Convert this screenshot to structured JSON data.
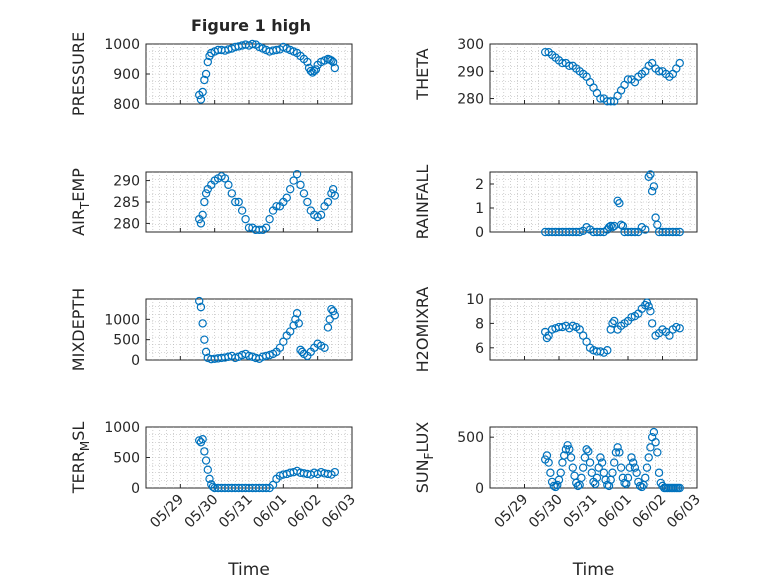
{
  "figure": {
    "title": "Figure 1 high"
  },
  "chart_data": [
    {
      "type": "scatter",
      "ylabel": "PRESSURE",
      "ylim": [
        800,
        1000
      ],
      "yticks": [
        "800",
        "900",
        "1000"
      ],
      "yticks_values": [
        800,
        900,
        1000
      ],
      "x_range": [
        0,
        4
      ],
      "x_tick_labels": [
        "05/29",
        "05/30",
        "05/31",
        "06/01",
        "06/02",
        "06/03"
      ],
      "x_tick_values": [
        0,
        1,
        2,
        3,
        4,
        5
      ],
      "x": [
        0.55,
        0.6,
        0.65,
        0.7,
        0.75,
        0.8,
        0.85,
        0.9,
        1.0,
        1.1,
        1.2,
        1.3,
        1.4,
        1.5,
        1.6,
        1.7,
        1.8,
        1.9,
        2.0,
        2.1,
        2.2,
        2.3,
        2.4,
        2.5,
        2.6,
        2.7,
        2.8,
        2.9,
        3.0,
        3.1,
        3.2,
        3.3,
        3.4,
        3.5,
        3.6,
        3.7,
        3.75,
        3.8,
        3.85,
        3.9,
        3.95,
        4.0,
        4.1,
        4.2,
        4.3,
        4.35,
        4.4,
        4.45,
        4.5
      ],
      "y": [
        830,
        815,
        840,
        880,
        900,
        940,
        960,
        970,
        975,
        980,
        980,
        978,
        982,
        985,
        990,
        992,
        995,
        998,
        995,
        1000,
        998,
        990,
        985,
        980,
        975,
        978,
        980,
        982,
        990,
        985,
        980,
        975,
        970,
        960,
        950,
        940,
        920,
        910,
        905,
        910,
        915,
        930,
        940,
        945,
        950,
        948,
        945,
        940,
        920
      ]
    },
    {
      "type": "scatter",
      "ylabel": "THETA",
      "ylim": [
        278,
        300
      ],
      "yticks": [
        "280",
        "290",
        "300"
      ],
      "yticks_values": [
        280,
        290,
        300
      ],
      "x_range": [
        0,
        4
      ],
      "x_tick_labels": [
        "05/29",
        "05/30",
        "05/31",
        "06/01",
        "06/02",
        "06/03"
      ],
      "x_tick_values": [
        0,
        1,
        2,
        3,
        4,
        5
      ],
      "x": [
        0.6,
        0.7,
        0.8,
        0.9,
        1.0,
        1.1,
        1.2,
        1.3,
        1.4,
        1.5,
        1.6,
        1.7,
        1.8,
        1.9,
        2.0,
        2.1,
        2.2,
        2.3,
        2.4,
        2.5,
        2.6,
        2.7,
        2.8,
        2.9,
        3.0,
        3.1,
        3.2,
        3.3,
        3.4,
        3.5,
        3.6,
        3.7,
        3.8,
        3.9,
        4.0,
        4.1,
        4.2,
        4.3,
        4.4,
        4.5
      ],
      "y": [
        297,
        297,
        296,
        295,
        294,
        293,
        293,
        292,
        292,
        291,
        290,
        289,
        288,
        286,
        284,
        282,
        280,
        280,
        279,
        279,
        279,
        281,
        283,
        285,
        287,
        287,
        286,
        288,
        289,
        290,
        292,
        293,
        291,
        290,
        290,
        289,
        288,
        289,
        291,
        293
      ]
    },
    {
      "type": "scatter",
      "ylabel": "AIR",
      "ylabel_sub": "T",
      "ylabel_rest": "EMP",
      "ylim": [
        278,
        292
      ],
      "yticks": [
        "280",
        "285",
        "290"
      ],
      "yticks_values": [
        280,
        285,
        290
      ],
      "x_range": [
        0,
        4
      ],
      "x_tick_labels": [
        "05/29",
        "05/30",
        "05/31",
        "06/01",
        "06/02",
        "06/03"
      ],
      "x_tick_values": [
        0,
        1,
        2,
        3,
        4,
        5
      ],
      "x": [
        0.55,
        0.6,
        0.65,
        0.7,
        0.75,
        0.8,
        0.9,
        1.0,
        1.1,
        1.2,
        1.3,
        1.4,
        1.5,
        1.6,
        1.7,
        1.8,
        1.9,
        2.0,
        2.1,
        2.2,
        2.3,
        2.4,
        2.5,
        2.6,
        2.7,
        2.8,
        2.9,
        3.0,
        3.1,
        3.2,
        3.3,
        3.4,
        3.5,
        3.6,
        3.7,
        3.8,
        3.9,
        4.0,
        4.1,
        4.2,
        4.3,
        4.4,
        4.45,
        4.5
      ],
      "y": [
        281,
        280,
        282,
        285,
        287,
        288,
        289,
        290,
        290.5,
        291,
        290.5,
        289,
        287,
        285,
        285,
        283,
        281,
        279,
        279,
        278.5,
        278.5,
        278.5,
        279,
        281,
        283,
        284,
        284,
        285,
        286,
        288,
        290,
        291.5,
        289,
        287,
        285,
        283,
        282,
        281.5,
        282,
        284,
        285,
        287,
        288,
        286.5
      ]
    },
    {
      "type": "scatter",
      "ylabel": "RAINFALL",
      "ylim": [
        0,
        2.5
      ],
      "yticks": [
        "0",
        "1",
        "2"
      ],
      "yticks_values": [
        0,
        1,
        2
      ],
      "x_range": [
        0,
        4
      ],
      "x_tick_labels": [
        "05/29",
        "05/30",
        "05/31",
        "06/01",
        "06/02",
        "06/03"
      ],
      "x_tick_values": [
        0,
        1,
        2,
        3,
        4,
        5
      ],
      "x": [
        0.6,
        0.7,
        0.8,
        0.9,
        1.0,
        1.1,
        1.2,
        1.3,
        1.4,
        1.5,
        1.6,
        1.7,
        1.8,
        1.9,
        2.0,
        2.1,
        2.2,
        2.3,
        2.4,
        2.45,
        2.5,
        2.55,
        2.6,
        2.7,
        2.75,
        2.8,
        2.85,
        2.9,
        3.0,
        3.1,
        3.2,
        3.3,
        3.4,
        3.5,
        3.6,
        3.65,
        3.7,
        3.75,
        3.8,
        3.85,
        3.9,
        4.0,
        4.1,
        4.2,
        4.3,
        4.4,
        4.5
      ],
      "y": [
        0,
        0,
        0,
        0,
        0,
        0,
        0,
        0,
        0,
        0,
        0,
        0.05,
        0.2,
        0.1,
        0,
        0,
        0,
        0,
        0.1,
        0.2,
        0.25,
        0.2,
        0.25,
        1.3,
        1.2,
        0.3,
        0.25,
        0,
        0,
        0,
        0,
        0,
        0.2,
        0.1,
        2.3,
        2.4,
        1.7,
        1.9,
        0.6,
        0.3,
        0,
        0,
        0,
        0,
        0,
        0,
        0
      ]
    },
    {
      "type": "scatter",
      "ylabel": "MIXDEPTH",
      "ylim": [
        0,
        1500
      ],
      "yticks": [
        "0",
        "500",
        "1000"
      ],
      "yticks_values": [
        0,
        500,
        1000
      ],
      "x_range": [
        0,
        4
      ],
      "x_tick_labels": [
        "05/29",
        "05/30",
        "05/31",
        "06/01",
        "06/02",
        "06/03"
      ],
      "x_tick_values": [
        0,
        1,
        2,
        3,
        4,
        5
      ],
      "x": [
        0.55,
        0.6,
        0.65,
        0.7,
        0.75,
        0.8,
        0.9,
        1.0,
        1.1,
        1.2,
        1.3,
        1.4,
        1.5,
        1.6,
        1.7,
        1.8,
        1.9,
        2.0,
        2.1,
        2.2,
        2.3,
        2.4,
        2.5,
        2.6,
        2.7,
        2.8,
        2.9,
        3.0,
        3.1,
        3.2,
        3.3,
        3.35,
        3.4,
        3.45,
        3.5,
        3.55,
        3.6,
        3.7,
        3.8,
        3.9,
        4.0,
        4.1,
        4.2,
        4.3,
        4.35,
        4.4,
        4.45,
        4.5
      ],
      "y": [
        1450,
        1300,
        900,
        500,
        200,
        50,
        20,
        30,
        40,
        50,
        60,
        80,
        100,
        50,
        80,
        120,
        150,
        100,
        80,
        50,
        30,
        80,
        100,
        120,
        150,
        200,
        300,
        450,
        600,
        700,
        850,
        1000,
        1150,
        900,
        250,
        200,
        150,
        100,
        200,
        300,
        400,
        350,
        300,
        800,
        1000,
        1250,
        1200,
        1100
      ]
    },
    {
      "type": "scatter",
      "ylabel": "H2OMIXRA",
      "ylim": [
        5,
        10
      ],
      "yticks": [
        "6",
        "8",
        "10"
      ],
      "yticks_values": [
        6,
        8,
        10
      ],
      "x_range": [
        0,
        4
      ],
      "x_tick_labels": [
        "05/29",
        "05/30",
        "05/31",
        "06/01",
        "06/02",
        "06/03"
      ],
      "x_tick_values": [
        0,
        1,
        2,
        3,
        4,
        5
      ],
      "x": [
        0.6,
        0.65,
        0.7,
        0.8,
        0.9,
        1.0,
        1.1,
        1.2,
        1.3,
        1.4,
        1.5,
        1.6,
        1.7,
        1.8,
        1.9,
        2.0,
        2.1,
        2.2,
        2.3,
        2.4,
        2.5,
        2.55,
        2.6,
        2.7,
        2.8,
        2.9,
        3.0,
        3.1,
        3.2,
        3.3,
        3.4,
        3.5,
        3.55,
        3.6,
        3.65,
        3.7,
        3.8,
        3.9,
        4.0,
        4.1,
        4.2,
        4.3,
        4.4,
        4.5
      ],
      "y": [
        7.3,
        6.8,
        7.0,
        7.5,
        7.6,
        7.7,
        7.7,
        7.8,
        7.6,
        7.8,
        7.7,
        7.5,
        7.0,
        6.5,
        6.0,
        5.8,
        5.7,
        5.7,
        5.6,
        5.8,
        7.5,
        8.0,
        8.2,
        7.5,
        7.8,
        8.0,
        8.2,
        8.5,
        8.6,
        8.8,
        9.2,
        9.5,
        9.7,
        9.4,
        9.0,
        8.0,
        7.0,
        7.2,
        7.5,
        7.3,
        7.0,
        7.5,
        7.7,
        7.6
      ]
    },
    {
      "type": "scatter",
      "ylabel": "TERR",
      "ylabel_sub": "M",
      "ylabel_rest": "SL",
      "ylim": [
        0,
        1000
      ],
      "yticks": [
        "0",
        "500",
        "1000"
      ],
      "yticks_values": [
        0,
        500,
        1000
      ],
      "x_range": [
        0,
        4
      ],
      "x_tick_labels": [
        "05/29",
        "05/30",
        "05/31",
        "06/01",
        "06/02",
        "06/03"
      ],
      "x_tick_values": [
        0,
        1,
        2,
        3,
        4,
        5
      ],
      "xlabel": "Time",
      "x": [
        0.55,
        0.6,
        0.65,
        0.7,
        0.75,
        0.8,
        0.85,
        0.9,
        0.95,
        1.0,
        1.1,
        1.2,
        1.3,
        1.4,
        1.5,
        1.6,
        1.7,
        1.8,
        1.9,
        2.0,
        2.1,
        2.2,
        2.3,
        2.4,
        2.5,
        2.6,
        2.7,
        2.8,
        2.9,
        3.0,
        3.1,
        3.2,
        3.3,
        3.4,
        3.5,
        3.6,
        3.7,
        3.8,
        3.9,
        4.0,
        4.1,
        4.2,
        4.3,
        4.4,
        4.5
      ],
      "y": [
        780,
        750,
        800,
        600,
        450,
        300,
        150,
        60,
        20,
        0,
        0,
        0,
        0,
        0,
        0,
        0,
        0,
        0,
        0,
        0,
        0,
        0,
        0,
        0,
        0,
        0,
        50,
        150,
        200,
        220,
        230,
        250,
        260,
        280,
        250,
        240,
        230,
        220,
        250,
        230,
        260,
        240,
        230,
        220,
        260
      ]
    },
    {
      "type": "scatter",
      "ylabel": "SUN",
      "ylabel_sub": "F",
      "ylabel_rest": "LUX",
      "ylim": [
        0,
        600
      ],
      "yticks": [
        "0",
        "500"
      ],
      "yticks_values": [
        0,
        500
      ],
      "x_range": [
        0,
        4
      ],
      "x_tick_labels": [
        "05/29",
        "05/30",
        "05/31",
        "06/01",
        "06/02",
        "06/03"
      ],
      "x_tick_values": [
        0,
        1,
        2,
        3,
        4,
        5
      ],
      "xlabel": "Time",
      "x": [
        0.6,
        0.65,
        0.7,
        0.75,
        0.8,
        0.85,
        0.9,
        0.95,
        1.0,
        1.05,
        1.1,
        1.15,
        1.2,
        1.25,
        1.3,
        1.35,
        1.4,
        1.45,
        1.5,
        1.55,
        1.6,
        1.65,
        1.7,
        1.75,
        1.8,
        1.85,
        1.9,
        1.95,
        2.0,
        2.05,
        2.1,
        2.15,
        2.2,
        2.25,
        2.3,
        2.35,
        2.4,
        2.45,
        2.5,
        2.55,
        2.6,
        2.65,
        2.7,
        2.75,
        2.8,
        2.85,
        2.9,
        2.95,
        3.0,
        3.05,
        3.1,
        3.15,
        3.2,
        3.25,
        3.3,
        3.35,
        3.4,
        3.45,
        3.5,
        3.55,
        3.6,
        3.65,
        3.7,
        3.75,
        3.8,
        3.85,
        3.9,
        3.95,
        4.0,
        4.05,
        4.1,
        4.15,
        4.2,
        4.25,
        4.3,
        4.35,
        4.4,
        4.45,
        4.5
      ],
      "y": [
        280,
        320,
        250,
        150,
        60,
        20,
        10,
        30,
        80,
        150,
        250,
        320,
        380,
        420,
        380,
        300,
        200,
        120,
        50,
        20,
        30,
        100,
        200,
        300,
        380,
        360,
        250,
        150,
        60,
        40,
        100,
        200,
        300,
        250,
        150,
        80,
        30,
        20,
        80,
        150,
        250,
        350,
        400,
        350,
        200,
        100,
        50,
        40,
        100,
        200,
        300,
        250,
        200,
        150,
        60,
        20,
        10,
        30,
        100,
        200,
        300,
        400,
        500,
        550,
        450,
        350,
        150,
        50,
        20,
        0,
        0,
        0,
        0,
        0,
        0,
        0,
        0,
        0,
        0
      ]
    }
  ]
}
